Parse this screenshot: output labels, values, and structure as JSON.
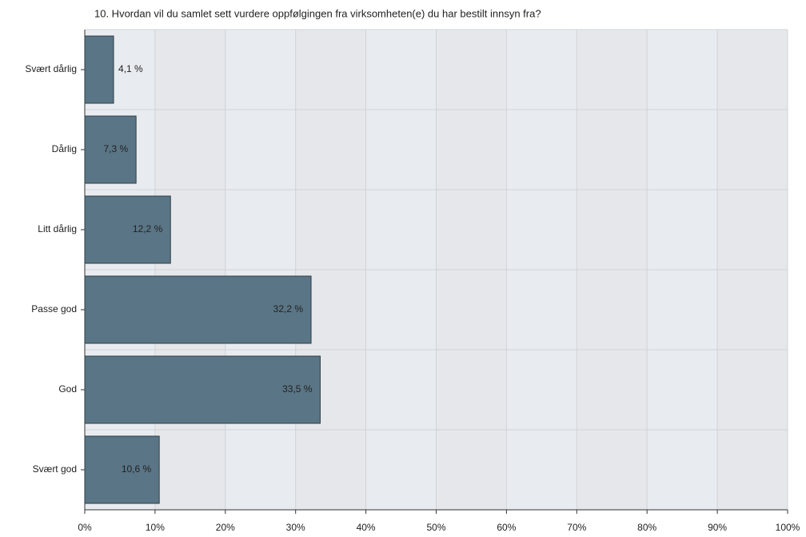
{
  "chart_data": {
    "type": "bar",
    "orientation": "horizontal",
    "title": "10. Hvordan vil du samlet sett vurdere oppfølgingen fra virksomheten(e) du har bestilt innsyn fra?",
    "categories": [
      "Svært dårlig",
      "Dårlig",
      "Litt dårlig",
      "Passe god",
      "God",
      "Svært god"
    ],
    "values": [
      4.1,
      7.3,
      12.2,
      32.2,
      33.5,
      10.6
    ],
    "value_labels": [
      "4,1 %",
      "7,3 %",
      "12,2 %",
      "32,2 %",
      "33,5 %",
      "10,6 %"
    ],
    "color": "#5a7585",
    "xlim": [
      0,
      100
    ],
    "xticks": [
      {
        "value": 0,
        "label": "0%"
      },
      {
        "value": 10,
        "label": "10%"
      },
      {
        "value": 20,
        "label": "20%"
      },
      {
        "value": 30,
        "label": "30%"
      },
      {
        "value": 40,
        "label": "40%"
      },
      {
        "value": 50,
        "label": "50%"
      },
      {
        "value": 60,
        "label": "60%"
      },
      {
        "value": 70,
        "label": "70%"
      },
      {
        "value": 80,
        "label": "80%"
      },
      {
        "value": 90,
        "label": "90%"
      },
      {
        "value": 100,
        "label": "100%"
      }
    ],
    "grid": true
  }
}
